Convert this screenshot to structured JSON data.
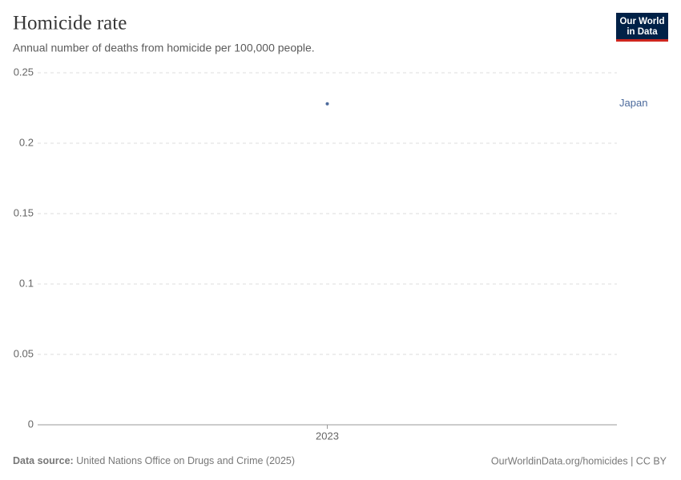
{
  "chart_data": {
    "type": "line",
    "title": "Homicide rate",
    "subtitle": "Annual number of deaths from homicide per 100,000 people.",
    "x": [
      2023
    ],
    "series": [
      {
        "name": "Japan",
        "color": "#4c6a9c",
        "values": [
          0.228
        ]
      }
    ],
    "ylim": [
      0,
      0.25
    ],
    "yticks": [
      0,
      0.05,
      0.1,
      0.15,
      0.2,
      0.25
    ],
    "xticks": [
      2023
    ],
    "grid": true
  },
  "source": {
    "label": "Data source:",
    "text": "United Nations Office on Drugs and Crime (2025)"
  },
  "url": "OurWorldinData.org/homicides | CC BY",
  "logo": [
    "Our World",
    "in Data"
  ]
}
